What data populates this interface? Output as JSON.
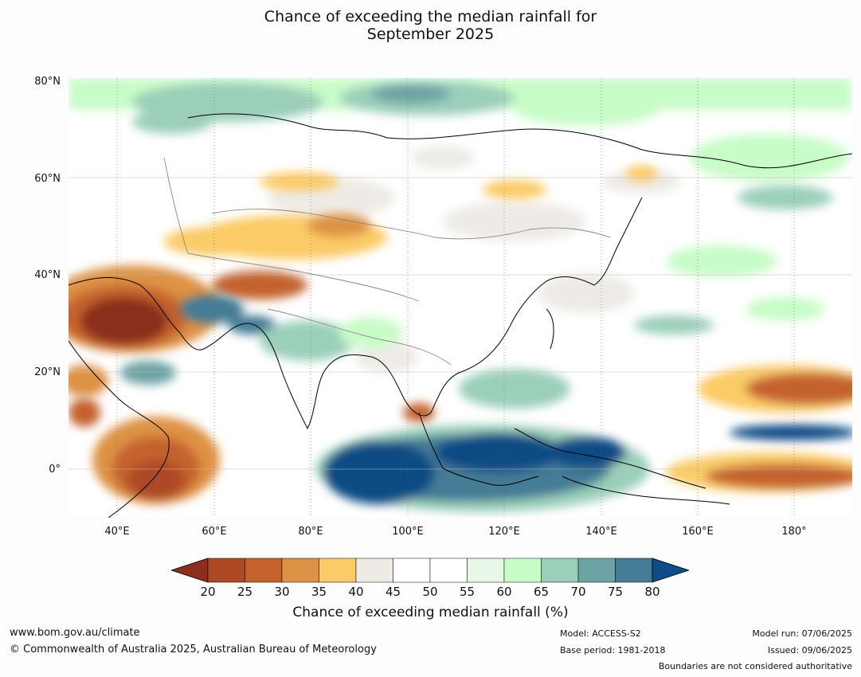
{
  "title_line1": "Chance of exceeding the median rainfall for",
  "title_line2": "September 2025",
  "lat_labels": [
    "80°N",
    "60°N",
    "40°N",
    "20°N",
    "0°"
  ],
  "lon_labels": [
    "40°E",
    "60°E",
    "80°E",
    "100°E",
    "120°E",
    "140°E",
    "160°E",
    "180°"
  ],
  "colorbar": {
    "ticks": [
      "20",
      "25",
      "30",
      "35",
      "40",
      "45",
      "50",
      "55",
      "60",
      "65",
      "70",
      "75",
      "80"
    ],
    "colors": [
      "#8b2e1b",
      "#ad4a25",
      "#c4622e",
      "#de9245",
      "#fbcb68",
      "#eeebe6",
      "#ffffff",
      "#ffffff",
      "#e8f7e8",
      "#c8fcc8",
      "#9bcfba",
      "#6ea3a5",
      "#457c96",
      "#0d4c85"
    ],
    "label": "Chance of exceeding median rainfall (%)"
  },
  "footer": {
    "website": "www.bom.gov.au/climate",
    "copyright": "© Commonwealth of Australia 2025, Australian Bureau of Meteorology",
    "model": "Model: ACCESS-S2",
    "base_period": "Base period: 1981-2018",
    "model_run": "Model run: 07/06/2025",
    "issued": "Issued: 09/06/2025",
    "disclaimer": "Boundaries are not considered authoritative"
  }
}
